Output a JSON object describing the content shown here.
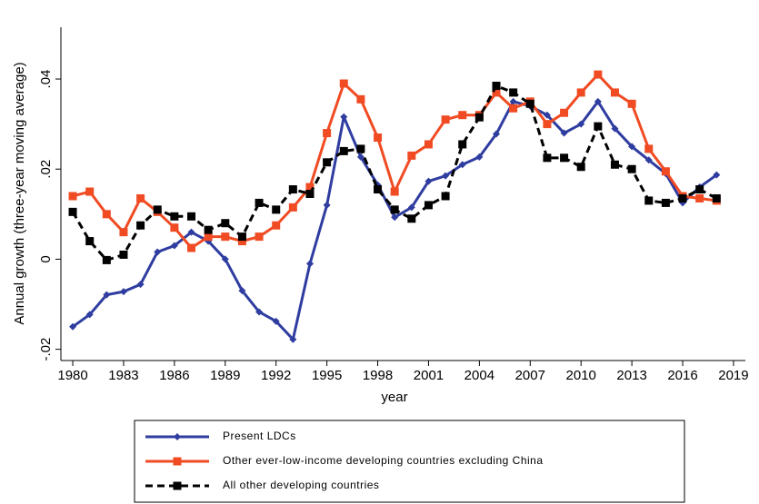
{
  "chart_data": {
    "type": "line",
    "x_label": "year",
    "y_label": "Annual growth (three-year moving average)",
    "x": [
      1980,
      1981,
      1982,
      1983,
      1984,
      1985,
      1986,
      1987,
      1988,
      1989,
      1990,
      1991,
      1992,
      1993,
      1994,
      1995,
      1996,
      1997,
      1998,
      1999,
      2000,
      2001,
      2002,
      2003,
      2004,
      2005,
      2006,
      2007,
      2008,
      2009,
      2010,
      2011,
      2012,
      2013,
      2014,
      2015,
      2016,
      2017,
      2018
    ],
    "series": [
      {
        "name": "Present LDCs",
        "color": "#2f3da0",
        "marker": "diamond",
        "dash": false,
        "values": [
          -0.015,
          -0.0123,
          -0.0079,
          -0.0072,
          -0.0056,
          0.0016,
          0.003,
          0.006,
          0.004,
          0,
          -0.007,
          -0.0117,
          -0.0138,
          -0.0178,
          -0.001,
          0.012,
          0.0316,
          0.0227,
          0.0165,
          0.0093,
          0.0115,
          0.0173,
          0.0185,
          0.021,
          0.0227,
          0.0278,
          0.035,
          0.034,
          0.032,
          0.028,
          0.03,
          0.035,
          0.029,
          0.025,
          0.022,
          0.019,
          0.0125,
          0.016,
          0.0187
        ]
      },
      {
        "name": "Other ever-low-income developing countries excluding China",
        "color": "#f04b23",
        "marker": "square",
        "dash": false,
        "values": [
          0.014,
          0.015,
          0.01,
          0.006,
          0.0135,
          0.0105,
          0.007,
          0.0025,
          0.005,
          0.005,
          0.004,
          0.005,
          0.0075,
          0.0115,
          0.016,
          0.028,
          0.039,
          0.0355,
          0.027,
          0.015,
          0.023,
          0.0255,
          0.031,
          0.032,
          0.032,
          0.037,
          0.0335,
          0.035,
          0.03,
          0.0325,
          0.037,
          0.041,
          0.037,
          0.0345,
          0.0245,
          0.0195,
          0.014,
          0.0135,
          0.013
        ]
      },
      {
        "name": "All other developing countries",
        "color": "#000000",
        "marker": "square",
        "dash": true,
        "values": [
          0.0105,
          0.004,
          -0.0002,
          0.001,
          0.0075,
          0.011,
          0.0095,
          0.0095,
          0.0065,
          0.008,
          0.005,
          0.0125,
          0.011,
          0.0155,
          0.0145,
          0.0215,
          0.024,
          0.0245,
          0.0155,
          0.011,
          0.009,
          0.012,
          0.014,
          0.0255,
          0.0315,
          0.0385,
          0.037,
          0.0345,
          0.0225,
          0.0225,
          0.0205,
          0.0295,
          0.021,
          0.02,
          0.013,
          0.0125,
          0.0135,
          0.0155,
          0.0135
        ]
      }
    ],
    "xlim": [
      1979.3,
      2019.7
    ],
    "xticks": [
      1980,
      1983,
      1986,
      1989,
      1992,
      1995,
      1998,
      2001,
      2004,
      2007,
      2010,
      2013,
      2016,
      2019
    ],
    "ylim": [
      -0.0225,
      0.0515
    ],
    "yticks": [
      {
        "value": -0.02,
        "label": "-.02"
      },
      0,
      {
        "value": 0.02,
        "label": ".02"
      },
      {
        "value": 0.04,
        "label": ".04"
      }
    ],
    "grid": false,
    "legend": "bottom"
  }
}
